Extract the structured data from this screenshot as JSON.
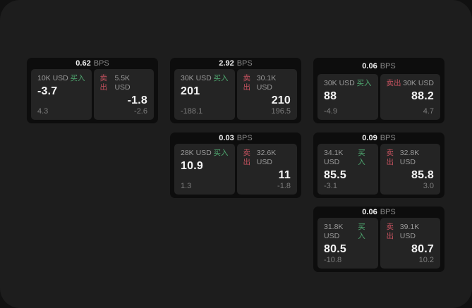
{
  "labels": {
    "bps_unit": "BPS",
    "buy": "买入",
    "sell": "卖出"
  },
  "colors": {
    "backdrop": "#111111",
    "page_bg": "#1d1d1d",
    "card_bg": "#0d0d0d",
    "panel_bg": "#242424",
    "text_primary": "#f5f5f5",
    "text_muted": "#9a9a9a",
    "buy_green": "#4fa870",
    "sell_red": "#c4525f"
  },
  "cards": [
    {
      "bps": "0.62",
      "buy": {
        "amount": "10K USD",
        "value": "-3.7",
        "sub": "4.3"
      },
      "sell": {
        "amount": "5.5K USD",
        "value": "-1.8",
        "sub": "-2.6"
      }
    },
    {
      "bps": "2.92",
      "buy": {
        "amount": "30K USD",
        "value": "201",
        "sub": "-188.1"
      },
      "sell": {
        "amount": "30.1K USD",
        "value": "210",
        "sub": "196.5"
      }
    },
    {
      "bps": "0.06",
      "buy": {
        "amount": "30K USD",
        "value": "88",
        "sub": "-4.9"
      },
      "sell": {
        "amount": "30K USD",
        "value": "88.2",
        "sub": "4.7"
      }
    },
    {
      "bps": "0.03",
      "buy": {
        "amount": "28K USD",
        "value": "10.9",
        "sub": "1.3"
      },
      "sell": {
        "amount": "32.6K USD",
        "value": "11",
        "sub": "-1.8"
      }
    },
    {
      "bps": "0.09",
      "buy": {
        "amount": "34.1K USD",
        "value": "85.5",
        "sub": "-3.1"
      },
      "sell": {
        "amount": "32.8K USD",
        "value": "85.8",
        "sub": "3.0"
      }
    },
    {
      "bps": "0.06",
      "buy": {
        "amount": "31.8K USD",
        "value": "80.5",
        "sub": "-10.8"
      },
      "sell": {
        "amount": "39.1K USD",
        "value": "80.7",
        "sub": "10.2"
      }
    }
  ]
}
